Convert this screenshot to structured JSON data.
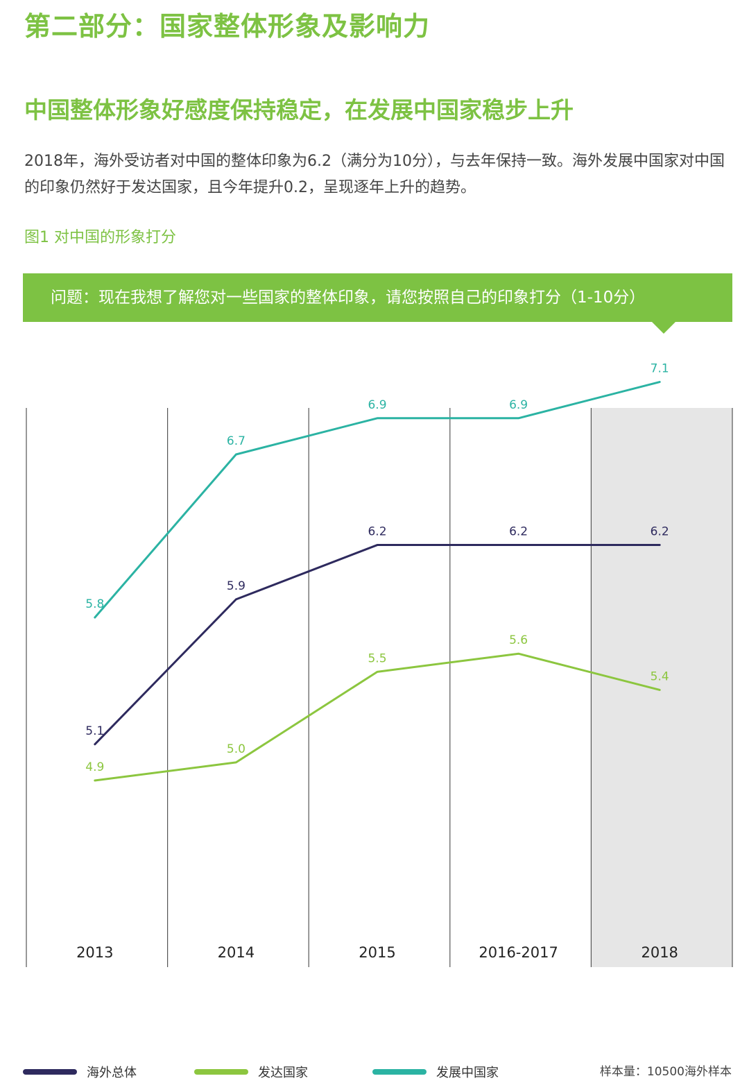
{
  "header": {
    "section_title": "第二部分：国家整体形象及影响力",
    "headline": "中国整体形象好感度保持稳定，在发展中国家稳步上升",
    "body": "2018年，海外受访者对中国的整体印象为6.2（满分为10分），与去年保持一致。海外发展中国家对中国的印象仍然好于发达国家，且今年提升0.2，呈现逐年上升的趋势。",
    "figure_label": "图1 对中国的形象打分",
    "question": "问题：现在我想了解您对一些国家的整体印象，请您按照自己的印象打分（1-10分）"
  },
  "chart_data": {
    "type": "line",
    "categories": [
      "2013",
      "2014",
      "2015",
      "2016-2017",
      "2018"
    ],
    "highlight_category": "2018",
    "ylim": [
      4.0,
      7.6
    ],
    "grid": "vertical separators",
    "legend_position": "bottom",
    "series": [
      {
        "name": "海外总体",
        "color": "#2e2a5e",
        "values": [
          5.1,
          5.9,
          6.2,
          6.2,
          6.2
        ]
      },
      {
        "name": "发达国家",
        "color": "#8cc63f",
        "values": [
          4.9,
          5.0,
          5.5,
          5.6,
          5.4
        ]
      },
      {
        "name": "发展中国家",
        "color": "#2bb3a3",
        "values": [
          5.8,
          6.7,
          6.9,
          6.9,
          7.1
        ]
      }
    ]
  },
  "legend": [
    {
      "label": "海外总体",
      "color": "#2e2a5e"
    },
    {
      "label": "发达国家",
      "color": "#8cc63f"
    },
    {
      "label": "发展中国家",
      "color": "#2bb3a3"
    }
  ],
  "footer": {
    "sample_note": "样本量：10500海外样本"
  },
  "colors": {
    "accent": "#7dc243",
    "highlight_bg": "#e6e6e6"
  }
}
